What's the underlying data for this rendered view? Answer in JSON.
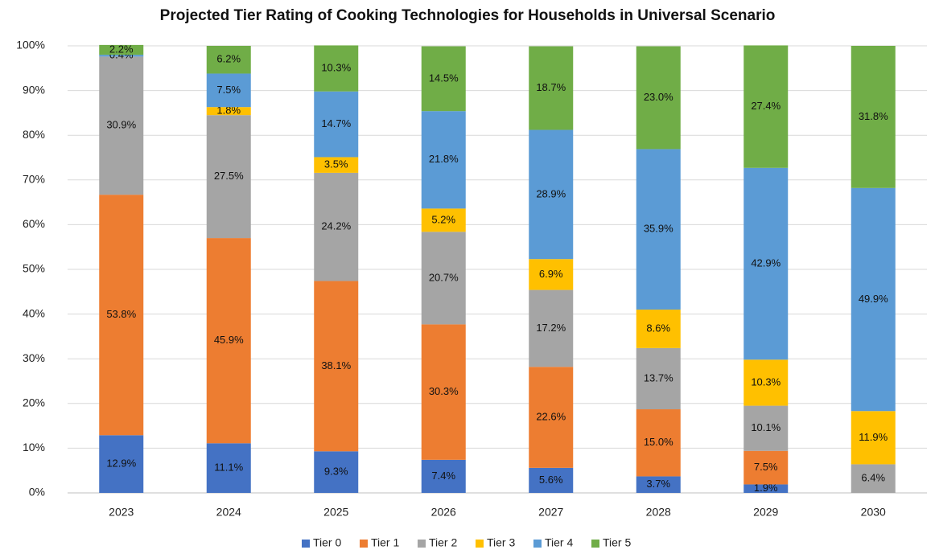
{
  "chart_data": {
    "type": "stacked_bar",
    "title": "Projected Tier Rating of Cooking Technologies for Households in Universal Scenario",
    "categories": [
      "2023",
      "2024",
      "2025",
      "2026",
      "2027",
      "2028",
      "2029",
      "2030"
    ],
    "series": [
      {
        "name": "Tier 0",
        "color": "#4472c4",
        "values": [
          12.9,
          11.1,
          9.3,
          7.4,
          5.6,
          3.7,
          1.9,
          null
        ],
        "value_labels": [
          "12.9%",
          "11.1%",
          "9.3%",
          "7.4%",
          "5.6%",
          "3.7%",
          "1.9%",
          null
        ]
      },
      {
        "name": "Tier 1",
        "color": "#ed7d31",
        "values": [
          53.8,
          45.9,
          38.1,
          30.3,
          22.6,
          15.0,
          7.5,
          null
        ],
        "value_labels": [
          "53.8%",
          "45.9%",
          "38.1%",
          "30.3%",
          "22.6%",
          "15.0%",
          "7.5%",
          null
        ]
      },
      {
        "name": "Tier 2",
        "color": "#a5a5a5",
        "values": [
          30.9,
          27.5,
          24.2,
          20.7,
          17.2,
          13.7,
          10.1,
          6.4
        ],
        "value_labels": [
          "30.9%",
          "27.5%",
          "24.2%",
          "20.7%",
          "17.2%",
          "13.7%",
          "10.1%",
          "6.4%"
        ]
      },
      {
        "name": "Tier 3",
        "color": "#ffc000",
        "values": [
          null,
          1.8,
          3.5,
          5.2,
          6.9,
          8.6,
          10.3,
          11.9
        ],
        "value_labels": [
          null,
          "1.8%",
          "3.5%",
          "5.2%",
          "6.9%",
          "8.6%",
          "10.3%",
          "11.9%"
        ]
      },
      {
        "name": "Tier 4",
        "color": "#5b9bd5",
        "values": [
          0.4,
          7.5,
          14.7,
          21.8,
          28.9,
          35.9,
          42.9,
          49.9
        ],
        "value_labels": [
          "0.4%",
          "7.5%",
          "14.7%",
          "21.8%",
          "28.9%",
          "35.9%",
          "42.9%",
          "49.9%"
        ]
      },
      {
        "name": "Tier 5",
        "color": "#70ad47",
        "values": [
          2.2,
          6.2,
          10.3,
          14.5,
          18.7,
          23.0,
          27.4,
          31.8
        ],
        "value_labels": [
          "2.2%",
          "6.2%",
          "10.3%",
          "14.5%",
          "18.7%",
          "23.0%",
          "27.4%",
          "31.8%"
        ]
      }
    ],
    "ylim": [
      0,
      100
    ],
    "yticks": [
      {
        "value": 0,
        "label": "0%"
      },
      {
        "value": 10,
        "label": "10%"
      },
      {
        "value": 20,
        "label": "20%"
      },
      {
        "value": 30,
        "label": "30%"
      },
      {
        "value": 40,
        "label": "40%"
      },
      {
        "value": 50,
        "label": "50%"
      },
      {
        "value": 60,
        "label": "60%"
      },
      {
        "value": 70,
        "label": "70%"
      },
      {
        "value": 80,
        "label": "80%"
      },
      {
        "value": 90,
        "label": "90%"
      },
      {
        "value": 100,
        "label": "100%"
      }
    ],
    "grid": true,
    "legend": "bottom"
  }
}
